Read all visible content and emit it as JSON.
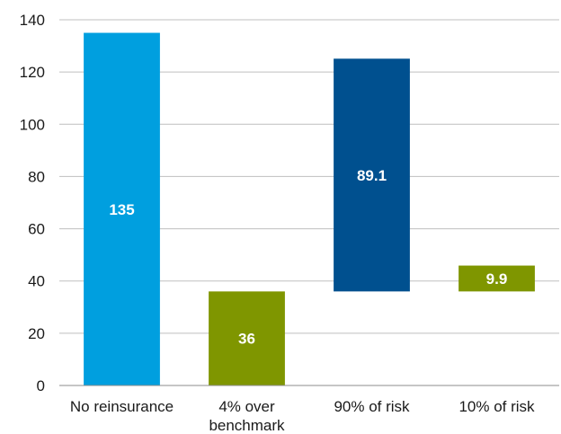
{
  "chart_data": {
    "type": "bar",
    "subtype": "waterfall",
    "categories": [
      "No reinsurance",
      "4% over benchmark",
      "90% of risk",
      "10% of risk"
    ],
    "category_lines": [
      [
        "No reinsurance"
      ],
      [
        "4% over",
        "benchmark"
      ],
      [
        "90% of risk"
      ],
      [
        "10% of risk"
      ]
    ],
    "bars": [
      {
        "category": "No reinsurance",
        "base": 0,
        "value": 135,
        "label": "135",
        "color": "#009fdf"
      },
      {
        "category": "4% over benchmark",
        "base": 0,
        "value": 36,
        "label": "36",
        "color": "#7f9600"
      },
      {
        "category": "90% of risk",
        "base": 36,
        "value": 89.1,
        "label": "89.1",
        "color": "#00508f"
      },
      {
        "category": "10% of risk",
        "base": 36,
        "value": 9.9,
        "label": "9.9",
        "color": "#7f9600"
      }
    ],
    "title": "",
    "xlabel": "",
    "ylabel": "",
    "ylim": [
      0,
      140
    ],
    "yticks": [
      0,
      20,
      40,
      60,
      80,
      100,
      120,
      140
    ],
    "grid": true,
    "legend": "none"
  }
}
